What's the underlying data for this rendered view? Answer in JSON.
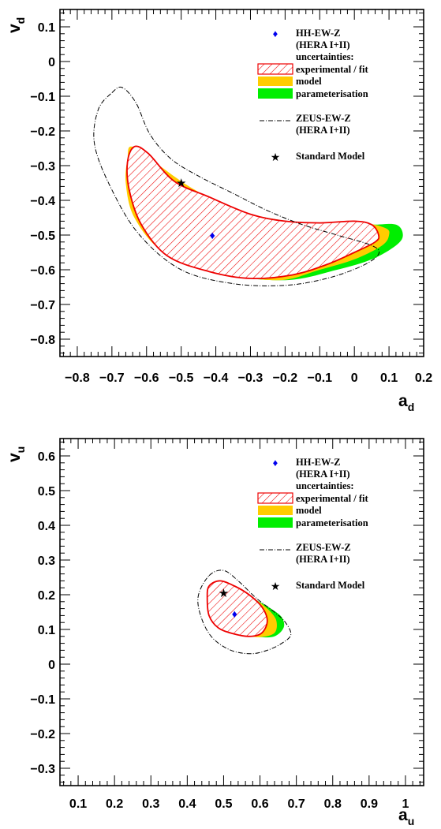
{
  "chart_data": [
    {
      "type": "scatter",
      "panel": "d",
      "xlabel": "a",
      "xlabel_sub": "d",
      "ylabel": "v",
      "ylabel_sub": "d",
      "xlim": [
        -0.85,
        0.2
      ],
      "ylim": [
        -0.85,
        0.15
      ],
      "xticks": [
        -0.8,
        -0.7,
        -0.6,
        -0.5,
        -0.4,
        -0.3,
        -0.2,
        -0.1,
        0,
        0.1,
        0.2
      ],
      "xtick_labels": [
        "−0.8",
        "−0.7",
        "−0.6",
        "−0.5",
        "−0.4",
        "−0.3",
        "−0.2",
        "−0.1",
        "0",
        "0.1",
        "0.2"
      ],
      "yticks": [
        0.1,
        0,
        -0.1,
        -0.2,
        -0.3,
        -0.4,
        -0.5,
        -0.6,
        -0.7,
        -0.8
      ],
      "ytick_labels": [
        "0.1",
        "0",
        "−0.1",
        "−0.2",
        "−0.3",
        "−0.4",
        "−0.5",
        "−0.6",
        "−0.7",
        "−0.8"
      ],
      "hh_point": {
        "x": -0.41,
        "y": -0.5
      },
      "sm_point": {
        "x": -0.5,
        "y": -0.35
      },
      "contours": {
        "parameterisation": [
          [
            -0.64,
            -0.25
          ],
          [
            -0.58,
            -0.29
          ],
          [
            -0.45,
            -0.38
          ],
          [
            -0.3,
            -0.44
          ],
          [
            -0.1,
            -0.47
          ],
          [
            0.05,
            -0.47
          ],
          [
            0.12,
            -0.47
          ],
          [
            0.14,
            -0.5
          ],
          [
            0.12,
            -0.53
          ],
          [
            0.05,
            -0.57
          ],
          [
            -0.05,
            -0.6
          ],
          [
            -0.2,
            -0.63
          ],
          [
            -0.4,
            -0.61
          ],
          [
            -0.55,
            -0.55
          ],
          [
            -0.63,
            -0.45
          ],
          [
            -0.655,
            -0.35
          ],
          [
            -0.65,
            -0.28
          ]
        ],
        "model": [
          [
            -0.645,
            -0.245
          ],
          [
            -0.59,
            -0.28
          ],
          [
            -0.46,
            -0.37
          ],
          [
            -0.3,
            -0.445
          ],
          [
            -0.1,
            -0.47
          ],
          [
            0.02,
            -0.465
          ],
          [
            0.09,
            -0.48
          ],
          [
            0.1,
            -0.5
          ],
          [
            0.08,
            -0.53
          ],
          [
            0.0,
            -0.57
          ],
          [
            -0.1,
            -0.6
          ],
          [
            -0.22,
            -0.63
          ],
          [
            -0.4,
            -0.605
          ],
          [
            -0.55,
            -0.55
          ],
          [
            -0.635,
            -0.45
          ],
          [
            -0.66,
            -0.35
          ],
          [
            -0.655,
            -0.28
          ]
        ],
        "experimental": [
          [
            -0.635,
            -0.245
          ],
          [
            -0.595,
            -0.265
          ],
          [
            -0.52,
            -0.345
          ],
          [
            -0.42,
            -0.39
          ],
          [
            -0.3,
            -0.44
          ],
          [
            -0.2,
            -0.46
          ],
          [
            -0.1,
            -0.465
          ],
          [
            0.0,
            -0.46
          ],
          [
            0.05,
            -0.47
          ],
          [
            0.07,
            -0.5
          ],
          [
            0.06,
            -0.52
          ],
          [
            0.0,
            -0.55
          ],
          [
            -0.08,
            -0.585
          ],
          [
            -0.18,
            -0.615
          ],
          [
            -0.3,
            -0.625
          ],
          [
            -0.42,
            -0.605
          ],
          [
            -0.54,
            -0.56
          ],
          [
            -0.615,
            -0.47
          ],
          [
            -0.65,
            -0.37
          ],
          [
            -0.655,
            -0.29
          ]
        ],
        "zeus": [
          [
            -0.7,
            -0.09
          ],
          [
            -0.67,
            -0.075
          ],
          [
            -0.63,
            -0.12
          ],
          [
            -0.59,
            -0.21
          ],
          [
            -0.53,
            -0.28
          ],
          [
            -0.45,
            -0.33
          ],
          [
            -0.35,
            -0.38
          ],
          [
            -0.25,
            -0.43
          ],
          [
            -0.15,
            -0.47
          ],
          [
            -0.05,
            -0.5
          ],
          [
            0.05,
            -0.53
          ],
          [
            0.07,
            -0.555
          ],
          [
            0.02,
            -0.59
          ],
          [
            -0.08,
            -0.625
          ],
          [
            -0.2,
            -0.645
          ],
          [
            -0.35,
            -0.64
          ],
          [
            -0.5,
            -0.6
          ],
          [
            -0.62,
            -0.5
          ],
          [
            -0.7,
            -0.37
          ],
          [
            -0.75,
            -0.24
          ],
          [
            -0.74,
            -0.14
          ]
        ]
      }
    },
    {
      "type": "scatter",
      "panel": "u",
      "xlabel": "a",
      "xlabel_sub": "u",
      "ylabel": "v",
      "ylabel_sub": "u",
      "xlim": [
        0.05,
        1.05
      ],
      "ylim": [
        -0.35,
        0.65
      ],
      "xticks": [
        0.1,
        0.2,
        0.3,
        0.4,
        0.5,
        0.6,
        0.7,
        0.8,
        0.9,
        1
      ],
      "xtick_labels": [
        "0.1",
        "0.2",
        "0.3",
        "0.4",
        "0.5",
        "0.6",
        "0.7",
        "0.8",
        "0.9",
        "1"
      ],
      "yticks": [
        0.6,
        0.5,
        0.4,
        0.3,
        0.2,
        0.1,
        0,
        -0.1,
        -0.2,
        -0.3
      ],
      "ytick_labels": [
        "0.6",
        "0.5",
        "0.4",
        "0.3",
        "0.2",
        "0.1",
        "0",
        "−0.1",
        "−0.2",
        "−0.3"
      ],
      "hh_point": {
        "x": 0.53,
        "y": 0.145
      },
      "sm_point": {
        "x": 0.5,
        "y": 0.205
      },
      "contours": {
        "parameterisation": [
          [
            0.46,
            0.225
          ],
          [
            0.49,
            0.24
          ],
          [
            0.54,
            0.22
          ],
          [
            0.59,
            0.185
          ],
          [
            0.63,
            0.16
          ],
          [
            0.66,
            0.135
          ],
          [
            0.665,
            0.105
          ],
          [
            0.64,
            0.08
          ],
          [
            0.6,
            0.078
          ],
          [
            0.55,
            0.085
          ],
          [
            0.5,
            0.105
          ],
          [
            0.465,
            0.14
          ],
          [
            0.455,
            0.18
          ]
        ],
        "model": [
          [
            0.46,
            0.225
          ],
          [
            0.49,
            0.24
          ],
          [
            0.54,
            0.22
          ],
          [
            0.59,
            0.185
          ],
          [
            0.625,
            0.155
          ],
          [
            0.645,
            0.125
          ],
          [
            0.64,
            0.09
          ],
          [
            0.6,
            0.078
          ],
          [
            0.55,
            0.085
          ],
          [
            0.5,
            0.105
          ],
          [
            0.465,
            0.14
          ],
          [
            0.455,
            0.18
          ]
        ],
        "experimental": [
          [
            0.46,
            0.225
          ],
          [
            0.49,
            0.24
          ],
          [
            0.53,
            0.225
          ],
          [
            0.57,
            0.2
          ],
          [
            0.605,
            0.165
          ],
          [
            0.62,
            0.125
          ],
          [
            0.605,
            0.09
          ],
          [
            0.57,
            0.08
          ],
          [
            0.525,
            0.088
          ],
          [
            0.485,
            0.105
          ],
          [
            0.46,
            0.14
          ],
          [
            0.455,
            0.19
          ]
        ],
        "zeus": [
          [
            0.46,
            0.255
          ],
          [
            0.5,
            0.27
          ],
          [
            0.54,
            0.24
          ],
          [
            0.59,
            0.19
          ],
          [
            0.64,
            0.15
          ],
          [
            0.67,
            0.12
          ],
          [
            0.685,
            0.085
          ],
          [
            0.66,
            0.06
          ],
          [
            0.62,
            0.04
          ],
          [
            0.575,
            0.03
          ],
          [
            0.52,
            0.04
          ],
          [
            0.47,
            0.075
          ],
          [
            0.44,
            0.13
          ],
          [
            0.43,
            0.195
          ]
        ]
      }
    }
  ],
  "legend": {
    "hh": "HH-EW-Z",
    "hh_sub": "(HERA I+II)",
    "uncert": "uncertainties:",
    "exp": "experimental / fit",
    "model": "model",
    "param": "parameterisation",
    "zeus": "ZEUS-EW-Z",
    "zeus_sub": "(HERA I+II)",
    "sm": "Standard Model"
  },
  "colors": {
    "parameterisation": "#00ee00",
    "model": "#ffcc00",
    "experimental": "#ee0000",
    "hh_marker": "#0000ee",
    "sm_marker": "#000000"
  }
}
